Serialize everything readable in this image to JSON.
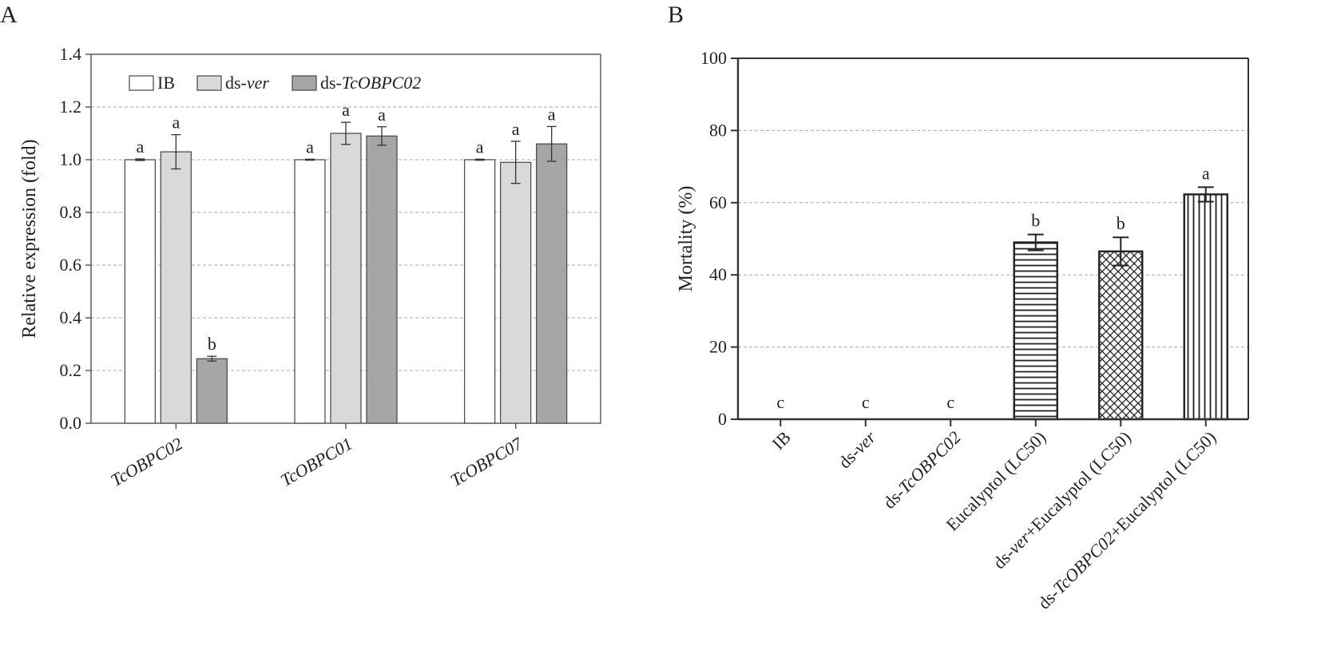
{
  "chart_data": [
    {
      "type": "bar",
      "panel_label": "A",
      "ylabel": "Relative expression (fold)",
      "xlabel": "",
      "ylim": [
        0,
        1.4
      ],
      "yticks": [
        "0.0",
        "0.2",
        "0.4",
        "0.6",
        "0.8",
        "1.0",
        "1.2",
        "1.4"
      ],
      "categories": [
        "TcOBPC02",
        "TcOBPC01",
        "TcOBPC07"
      ],
      "grid": true,
      "legend_position": "top-left",
      "series": [
        {
          "name": "IB",
          "name_prefix": "IB",
          "name_italic": "",
          "color": "#ffffff",
          "values": [
            1.0,
            1.0,
            1.0
          ],
          "errors": [
            0.003,
            0.002,
            0.002
          ],
          "letters": [
            "a",
            "a",
            "a"
          ]
        },
        {
          "name": "ds-ver",
          "name_prefix": "ds-",
          "name_italic": "ver",
          "color": "#d9d9d9",
          "values": [
            1.03,
            1.1,
            0.99
          ],
          "errors": [
            0.065,
            0.042,
            0.08
          ],
          "letters": [
            "a",
            "a",
            "a"
          ]
        },
        {
          "name": "ds-TcOBPC02",
          "name_prefix": "ds-",
          "name_italic": "TcOBPC02",
          "color": "#a6a6a6",
          "values": [
            0.245,
            1.09,
            1.06
          ],
          "errors": [
            0.009,
            0.035,
            0.066
          ],
          "letters": [
            "b",
            "a",
            "a"
          ]
        }
      ]
    },
    {
      "type": "bar",
      "panel_label": "B",
      "ylabel": "Mortality (%)",
      "xlabel": "",
      "ylim": [
        0,
        100
      ],
      "yticks": [
        "0",
        "20",
        "40",
        "60",
        "80",
        "100"
      ],
      "grid": true,
      "categories": [
        {
          "label": "IB",
          "prefix": "IB",
          "italic": "",
          "suffix": ""
        },
        {
          "label": "ds-ver",
          "prefix": "ds-",
          "italic": "ver",
          "suffix": ""
        },
        {
          "label": "ds-TcOBPC02",
          "prefix": "ds-",
          "italic": "TcOBPC02",
          "suffix": ""
        },
        {
          "label": "Eucalyptol (LC50)",
          "prefix": "Eucalyptol (LC50)",
          "italic": "",
          "suffix": ""
        },
        {
          "label": "ds-ver+Eucalyptol (LC50)",
          "prefix": "ds-",
          "italic": "ver",
          "suffix": "+Eucalyptol (LC50)"
        },
        {
          "label": "ds-TcOBPC02+Eucalyptol (LC50)",
          "prefix": "ds-",
          "italic": "TcOBPC02",
          "suffix": "+Eucalyptol (LC50)"
        }
      ],
      "values": [
        0,
        0,
        0,
        49,
        46.5,
        62.3
      ],
      "errors": [
        0,
        0,
        0,
        2.2,
        3.9,
        2.0
      ],
      "letters": [
        "c",
        "c",
        "c",
        "b",
        "b",
        "a"
      ],
      "patterns": [
        "none",
        "none",
        "none",
        "horizontal",
        "crosshatch",
        "vertical"
      ]
    }
  ]
}
